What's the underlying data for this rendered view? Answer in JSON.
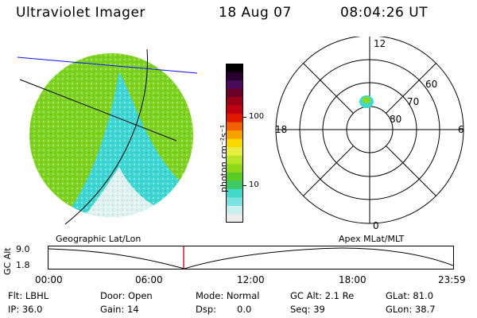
{
  "header": {
    "title": "Ultraviolet Imager",
    "date": "18 Aug 07",
    "time": "08:04:26 UT"
  },
  "colorbar": {
    "unit_label": "photon cm⁻²s⁻¹",
    "ticks": [
      "100",
      "10"
    ],
    "colors": [
      "#000000",
      "#2a0030",
      "#4a0a5a",
      "#6a0028",
      "#9a0018",
      "#c00010",
      "#e01a00",
      "#f06000",
      "#f8a000",
      "#f8d800",
      "#e8ee40",
      "#b8e428",
      "#8ed81a",
      "#5ccc24",
      "#3ec864",
      "#40d8c8",
      "#7ce4e0",
      "#c8eeee",
      "#ececec"
    ]
  },
  "left_panel": {
    "colors": {
      "green": "#7ed320",
      "teal": "#3fd7d3",
      "pale": "#dff2f2",
      "line": "#1010ff"
    }
  },
  "polar_plot": {
    "labels": {
      "top": "12",
      "left": "18",
      "right": "6",
      "bottom": "0"
    },
    "ring_labels": [
      "60",
      "70",
      "80"
    ]
  },
  "timeline": {
    "left_title": "Geographic Lat/Lon",
    "right_title": "Apex MLat/MLT",
    "y_label": "GC Alt",
    "y_ticks": [
      "9.0",
      "1.8"
    ],
    "x_ticks": [
      "00:00",
      "06:00",
      "12:00",
      "18:00",
      "23:59"
    ],
    "marker_color": "#cc2020"
  },
  "info": {
    "row1": {
      "flt": "Flt: LBHL",
      "door": "Door: Open",
      "mode": "Mode: Normal",
      "gcalt": "GC Alt: 2.1 Re",
      "glat": "GLat: 81.0"
    },
    "row2": {
      "ip": "IP: 36.0",
      "gain": "Gain: 14",
      "dsp_label": "Dsp:",
      "dsp_value": "0.0",
      "seq": "Seq: 39",
      "glon": "GLon: 38.7"
    }
  }
}
